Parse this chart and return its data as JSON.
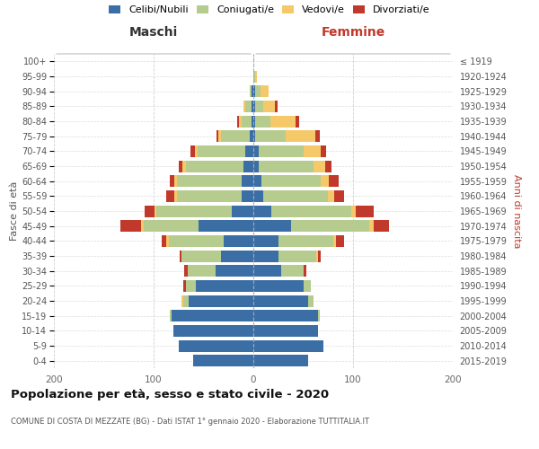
{
  "age_groups": [
    "0-4",
    "5-9",
    "10-14",
    "15-19",
    "20-24",
    "25-29",
    "30-34",
    "35-39",
    "40-44",
    "45-49",
    "50-54",
    "55-59",
    "60-64",
    "65-69",
    "70-74",
    "75-79",
    "80-84",
    "85-89",
    "90-94",
    "95-99",
    "100+"
  ],
  "birth_years": [
    "2015-2019",
    "2010-2014",
    "2005-2009",
    "2000-2004",
    "1995-1999",
    "1990-1994",
    "1985-1989",
    "1980-1984",
    "1975-1979",
    "1970-1974",
    "1965-1969",
    "1960-1964",
    "1955-1959",
    "1950-1954",
    "1945-1949",
    "1940-1944",
    "1935-1939",
    "1930-1934",
    "1925-1929",
    "1920-1924",
    "≤ 1919"
  ],
  "maschi": {
    "celibi": [
      60,
      75,
      80,
      82,
      65,
      58,
      38,
      32,
      30,
      55,
      22,
      12,
      12,
      10,
      8,
      4,
      2,
      2,
      2,
      0,
      0
    ],
    "coniugati": [
      0,
      0,
      0,
      2,
      5,
      10,
      28,
      40,
      55,
      55,
      75,
      65,
      65,
      58,
      48,
      28,
      10,
      6,
      2,
      0,
      0
    ],
    "vedovi": [
      0,
      0,
      0,
      0,
      2,
      0,
      0,
      0,
      2,
      3,
      2,
      2,
      2,
      3,
      3,
      3,
      2,
      2,
      0,
      0,
      0
    ],
    "divorziati": [
      0,
      0,
      0,
      0,
      0,
      2,
      3,
      2,
      5,
      20,
      10,
      8,
      5,
      4,
      4,
      2,
      2,
      0,
      0,
      0,
      0
    ]
  },
  "femmine": {
    "nubili": [
      55,
      70,
      65,
      65,
      55,
      50,
      28,
      25,
      25,
      38,
      18,
      10,
      8,
      5,
      5,
      2,
      2,
      2,
      2,
      0,
      0
    ],
    "coniugate": [
      0,
      0,
      0,
      2,
      5,
      8,
      22,
      38,
      55,
      78,
      80,
      65,
      60,
      55,
      45,
      30,
      15,
      8,
      5,
      2,
      0
    ],
    "vedove": [
      0,
      0,
      0,
      0,
      0,
      0,
      0,
      2,
      3,
      5,
      5,
      6,
      8,
      12,
      18,
      30,
      25,
      12,
      8,
      2,
      0
    ],
    "divorziate": [
      0,
      0,
      0,
      0,
      0,
      0,
      3,
      3,
      8,
      15,
      18,
      10,
      10,
      6,
      5,
      5,
      4,
      2,
      0,
      0,
      0
    ]
  },
  "colors": {
    "celibi": "#3a6ea5",
    "coniugati": "#b5cc8e",
    "vedovi": "#f5c96a",
    "divorziati": "#c0392b"
  },
  "title": "Popolazione per età, sesso e stato civile - 2020",
  "subtitle": "COMUNE DI COSTA DI MEZZATE (BG) - Dati ISTAT 1° gennaio 2020 - Elaborazione TUTTITALIA.IT",
  "header_left": "Maschi",
  "header_right": "Femmine",
  "ylabel_left": "Fasce di età",
  "ylabel_right": "Anni di nascita",
  "xlim": 200,
  "legend_labels": [
    "Celibi/Nubili",
    "Coniugati/e",
    "Vedovi/e",
    "Divorziati/e"
  ],
  "background_color": "#ffffff",
  "grid_color": "#cccccc"
}
